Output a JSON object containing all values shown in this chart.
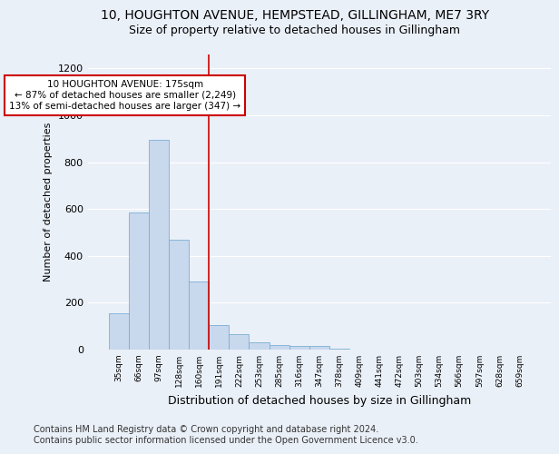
{
  "title": "10, HOUGHTON AVENUE, HEMPSTEAD, GILLINGHAM, ME7 3RY",
  "subtitle": "Size of property relative to detached houses in Gillingham",
  "xlabel": "Distribution of detached houses by size in Gillingham",
  "ylabel": "Number of detached properties",
  "categories": [
    "35sqm",
    "66sqm",
    "97sqm",
    "128sqm",
    "160sqm",
    "191sqm",
    "222sqm",
    "253sqm",
    "285sqm",
    "316sqm",
    "347sqm",
    "378sqm",
    "409sqm",
    "441sqm",
    "472sqm",
    "503sqm",
    "534sqm",
    "566sqm",
    "597sqm",
    "628sqm",
    "659sqm"
  ],
  "values": [
    155,
    585,
    895,
    470,
    290,
    105,
    65,
    30,
    20,
    15,
    15,
    5,
    0,
    0,
    0,
    0,
    0,
    0,
    0,
    0,
    0
  ],
  "bar_color": "#c8d8ed",
  "bar_edge_color": "#7bafd4",
  "vline_x": 4.5,
  "vline_color": "#cc0000",
  "annotation_text_line1": "10 HOUGHTON AVENUE: 175sqm",
  "annotation_text_line2": "← 87% of detached houses are smaller (2,249)",
  "annotation_text_line3": "13% of semi-detached houses are larger (347) →",
  "annotation_box_color": "#cc0000",
  "ylim": [
    0,
    1260
  ],
  "yticks": [
    0,
    200,
    400,
    600,
    800,
    1000,
    1200
  ],
  "background_color": "#eaf0f8",
  "grid_color": "#ffffff",
  "footer_line1": "Contains HM Land Registry data © Crown copyright and database right 2024.",
  "footer_line2": "Contains public sector information licensed under the Open Government Licence v3.0.",
  "title_fontsize": 10,
  "subtitle_fontsize": 9,
  "xlabel_fontsize": 9,
  "ylabel_fontsize": 8,
  "footer_fontsize": 7
}
